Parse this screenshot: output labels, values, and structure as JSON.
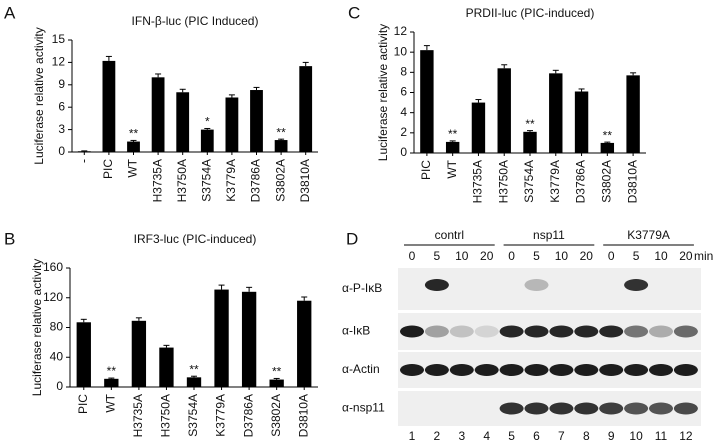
{
  "chart_data": [
    {
      "type": "bar",
      "panel": "A",
      "title": "IFN-β-luc (PIC Induced)",
      "y_label": "Luciferase relative activity",
      "categories": [
        "-",
        "PIC",
        "WT",
        "H3735A",
        "H3750A",
        "S3754A",
        "K3779A",
        "D3786A",
        "S3802A",
        "D3810A"
      ],
      "values": [
        0.1,
        12.2,
        1.4,
        10,
        8,
        3,
        7.3,
        8.3,
        1.6,
        11.5
      ],
      "errors": [
        0.05,
        0.6,
        0.15,
        0.45,
        0.4,
        0.15,
        0.35,
        0.35,
        0.12,
        0.5
      ],
      "significance": [
        null,
        null,
        "**",
        null,
        null,
        "*",
        null,
        null,
        "**",
        null
      ],
      "color": "#000000",
      "ylim": [
        0,
        15
      ],
      "yticks": [
        0,
        3,
        6,
        9,
        12,
        15
      ]
    },
    {
      "type": "bar",
      "panel": "B",
      "title": "IRF3-luc (PIC-induced)",
      "y_label": "Luciferase relative activity",
      "categories": [
        "PIC",
        "WT",
        "H3735A",
        "H3750A",
        "S3754A",
        "K3779A",
        "D3786A",
        "S3802A",
        "D3810A"
      ],
      "values": [
        87,
        11,
        89,
        53,
        13,
        131,
        128,
        10,
        116
      ],
      "errors": [
        4,
        1,
        4,
        3,
        1.5,
        6,
        6,
        1.5,
        5
      ],
      "significance": [
        null,
        "**",
        null,
        null,
        "**",
        null,
        null,
        "**",
        null
      ],
      "color": "#000000",
      "ylim": [
        0,
        160
      ],
      "yticks": [
        0,
        40,
        80,
        120,
        160
      ]
    },
    {
      "type": "bar",
      "panel": "C",
      "title": "PRDII-luc (PIC-induced)",
      "y_label": "Luciferase relative activity",
      "categories": [
        "PIC",
        "WT",
        "H3735A",
        "H3750A",
        "S3754A",
        "K3779A",
        "D3786A",
        "S3802A",
        "D3810A"
      ],
      "values": [
        10.2,
        1.1,
        5,
        8.4,
        2.1,
        7.9,
        6.1,
        1,
        7.7
      ],
      "errors": [
        0.45,
        0.1,
        0.3,
        0.35,
        0.12,
        0.3,
        0.25,
        0.08,
        0.25
      ],
      "significance": [
        null,
        "**",
        null,
        null,
        "**",
        null,
        null,
        "**",
        null
      ],
      "color": "#000000",
      "ylim": [
        0,
        12
      ],
      "yticks": [
        0,
        2,
        4,
        6,
        8,
        10,
        12
      ]
    }
  ],
  "blot": {
    "panel": "D",
    "groups": [
      "contrl",
      "nsp11",
      "K3779A"
    ],
    "times": [
      0,
      5,
      10,
      20,
      0,
      5,
      10,
      20,
      0,
      5,
      10,
      20
    ],
    "time_unit": "min",
    "rows": [
      "α-P-IκB",
      "α-IκB",
      "α-Actin",
      "α-nsp11"
    ],
    "lanes": [
      1,
      2,
      3,
      4,
      5,
      6,
      7,
      8,
      9,
      10,
      11,
      12
    ]
  }
}
